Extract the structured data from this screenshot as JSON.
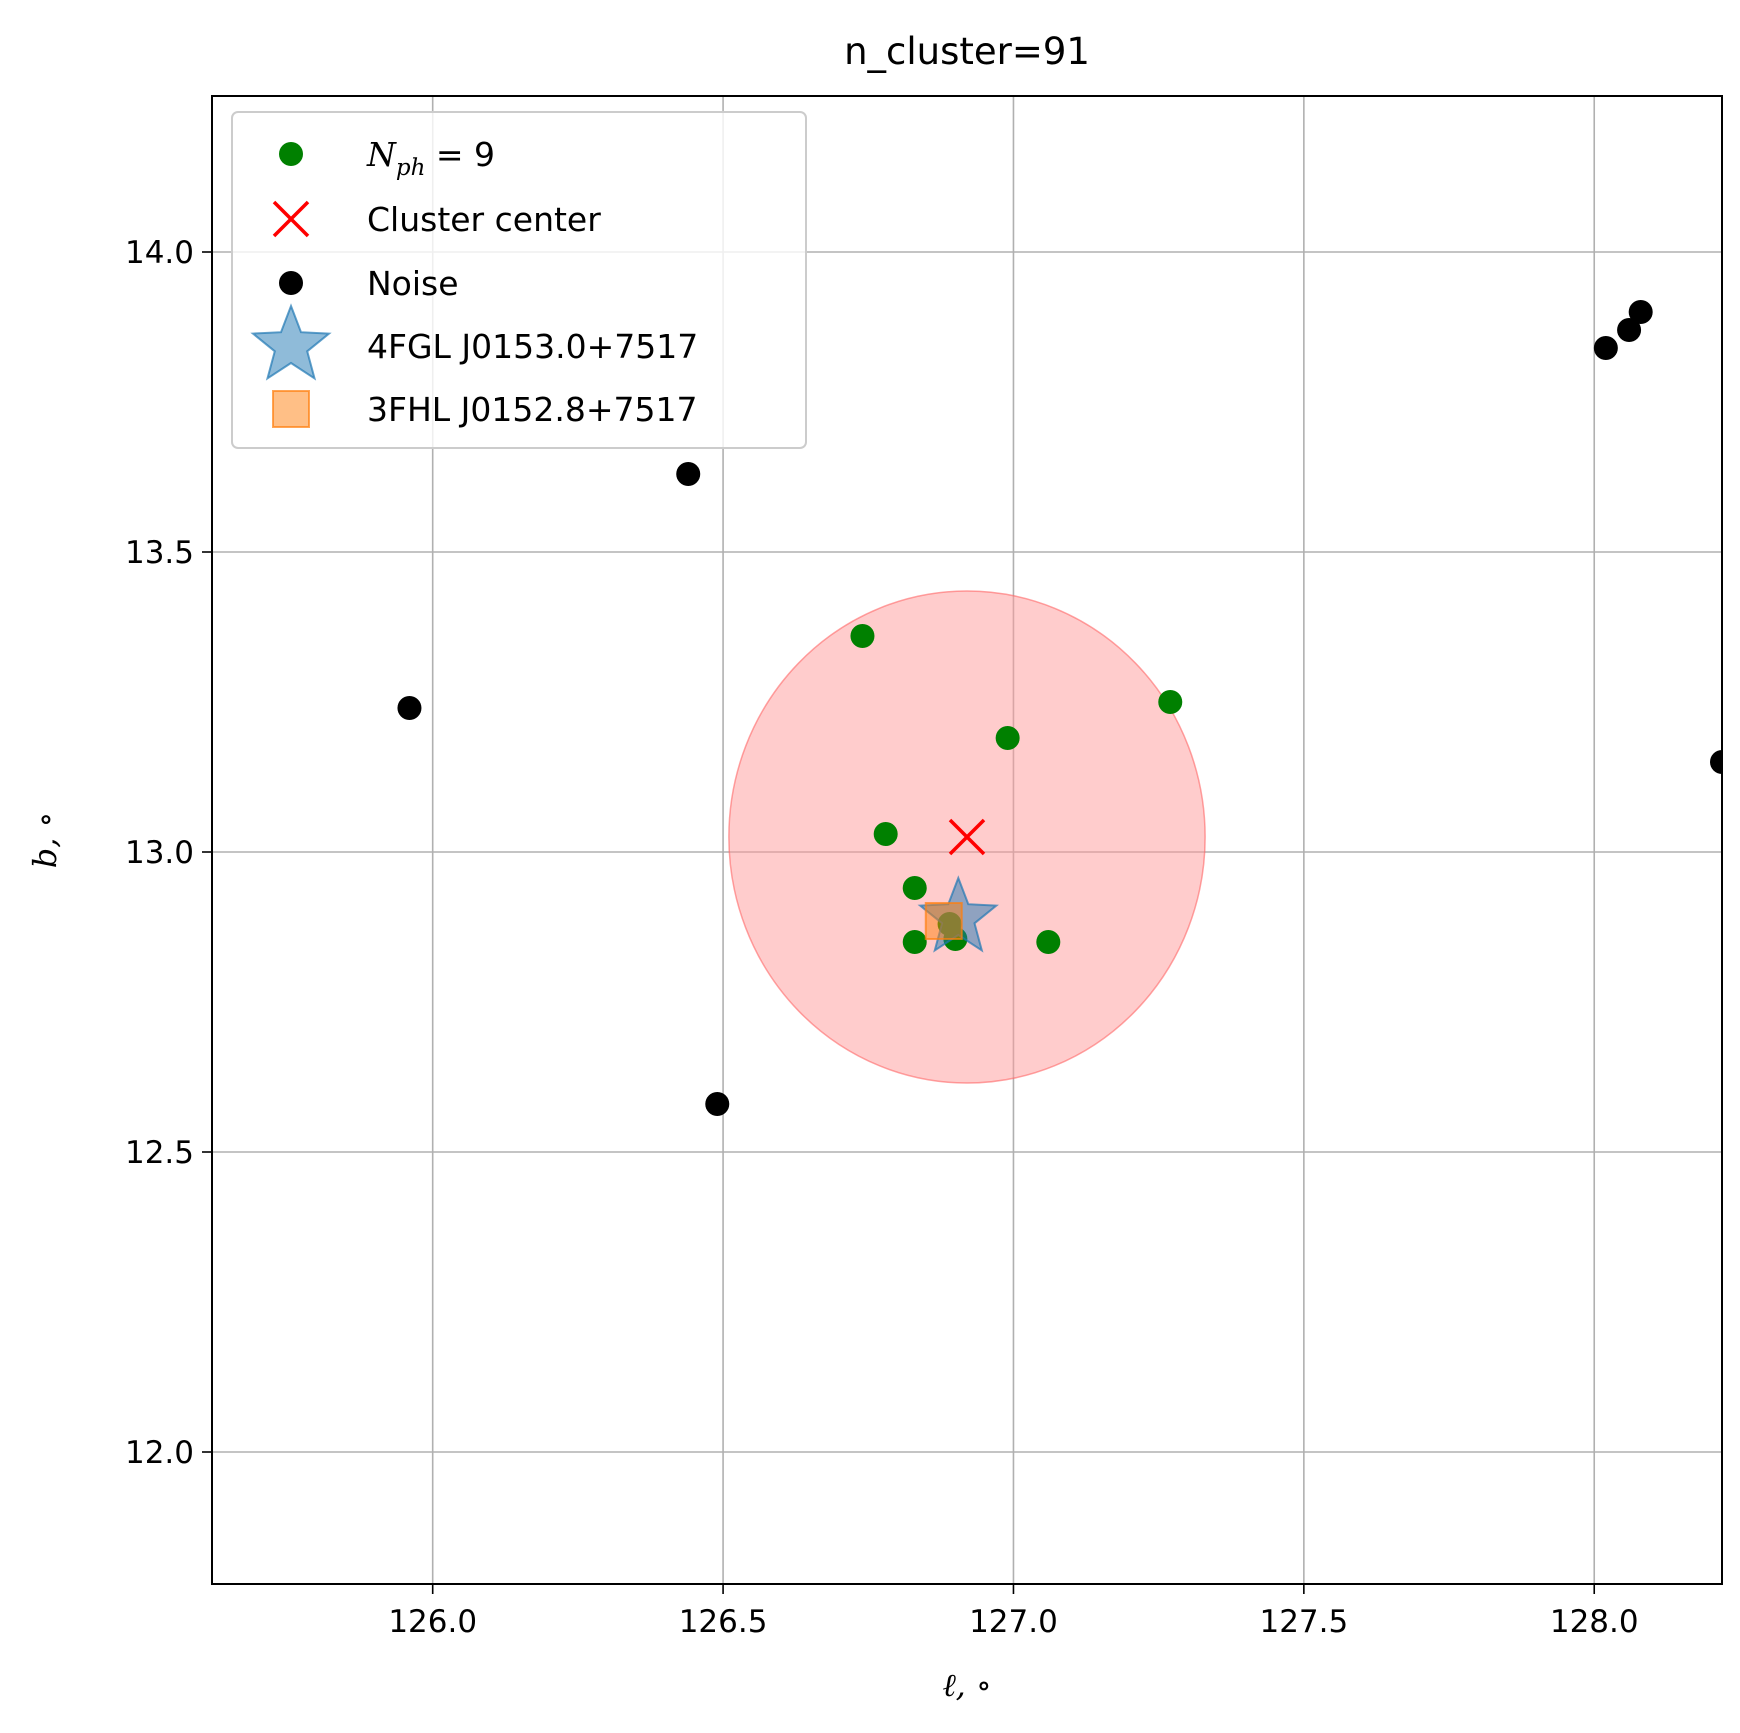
{
  "chart_data": {
    "type": "scatter",
    "title": "n_cluster=91",
    "xlabel": "ℓ, ∘",
    "ylabel": "b, ∘",
    "xlim": [
      125.62,
      128.22
    ],
    "ylim": [
      11.78,
      14.26
    ],
    "xticks": [
      126.0,
      126.5,
      127.0,
      127.5,
      128.0
    ],
    "xtick_labels": [
      "126.0",
      "126.5",
      "127.0",
      "127.5",
      "128.0"
    ],
    "yticks": [
      12.0,
      12.5,
      13.0,
      13.5,
      14.0
    ],
    "ytick_labels": [
      "12.0",
      "12.5",
      "13.0",
      "13.5",
      "14.0"
    ],
    "grid": true,
    "legend_position": "top-left",
    "colors": {
      "cluster": "#008000",
      "center": "#ff0000",
      "noise": "#000000",
      "source_4fgl": "#1f77b4",
      "source_3fhl": "#ff7f0e",
      "circle_fill": "#ff9999"
    },
    "cluster_circle": {
      "center": [
        126.92,
        13.025
      ],
      "radius": 0.41
    },
    "series": [
      {
        "name": "N_ph = 9",
        "legend_label": {
          "base": "N",
          "sub": "ph",
          "rest": " = 9"
        },
        "marker": "circle",
        "points": [
          [
            126.74,
            13.36
          ],
          [
            127.27,
            13.25
          ],
          [
            126.99,
            13.19
          ],
          [
            126.78,
            13.03
          ],
          [
            126.83,
            12.94
          ],
          [
            126.89,
            12.88
          ],
          [
            126.83,
            12.85
          ],
          [
            126.9,
            12.855
          ],
          [
            127.06,
            12.85
          ]
        ]
      },
      {
        "name": "Cluster center",
        "marker": "x",
        "points": [
          [
            126.92,
            13.025
          ]
        ]
      },
      {
        "name": "Noise",
        "marker": "circle",
        "points": [
          [
            126.44,
            13.63
          ],
          [
            125.96,
            13.24
          ],
          [
            126.49,
            12.58
          ],
          [
            128.02,
            13.84
          ],
          [
            128.06,
            13.87
          ],
          [
            128.08,
            13.9
          ],
          [
            128.22,
            13.15
          ]
        ]
      },
      {
        "name": "4FGL J0153.0+7517",
        "marker": "star",
        "points": [
          [
            126.905,
            12.89
          ]
        ]
      },
      {
        "name": "3FHL J0152.8+7517",
        "marker": "square",
        "points": [
          [
            126.88,
            12.885
          ]
        ]
      }
    ]
  }
}
